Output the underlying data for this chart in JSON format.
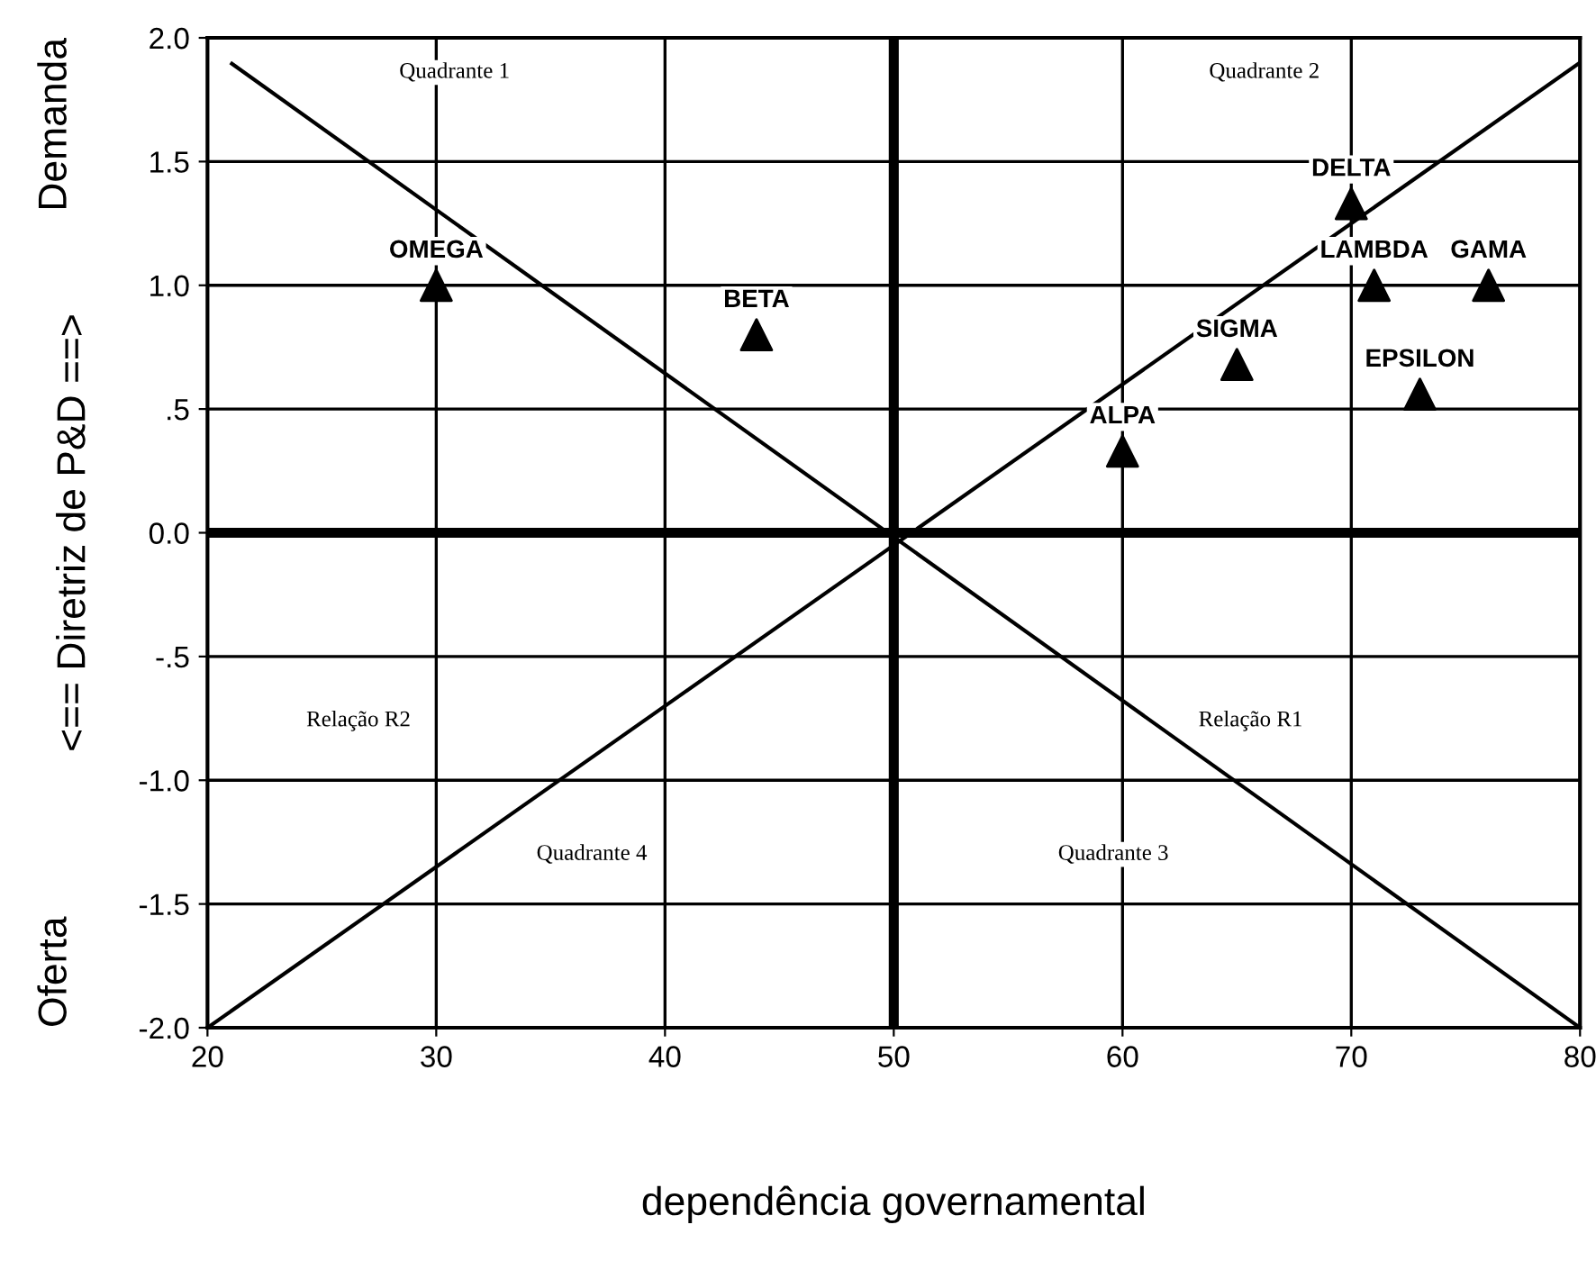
{
  "chart_data": {
    "type": "scatter",
    "xlabel": "dependência governamental",
    "ylabel": "<== Diretriz de P&D ==>",
    "xlim": [
      20,
      80
    ],
    "xticks": [
      20,
      30,
      40,
      50,
      60,
      70,
      80
    ],
    "ylim": [
      -2.0,
      2.0
    ],
    "yticks": [
      {
        "value": 2.0,
        "label": "2.0"
      },
      {
        "value": 1.5,
        "label": "1.5"
      },
      {
        "value": 1.0,
        "label": "1.0"
      },
      {
        "value": 0.5,
        "label": ".5"
      },
      {
        "value": 0.0,
        "label": "0.0"
      },
      {
        "value": -0.5,
        "label": "-.5"
      },
      {
        "value": -1.0,
        "label": "-1.0"
      },
      {
        "value": -1.5,
        "label": "-1.5"
      },
      {
        "value": -2.0,
        "label": "-2.0"
      }
    ],
    "grid": true,
    "marker": "triangle",
    "legend": false,
    "series": [
      {
        "name": "OMEGA",
        "color": "#000000",
        "x": [
          30
        ],
        "values": [
          1.0
        ]
      },
      {
        "name": "BETA",
        "color": "#000000",
        "x": [
          44
        ],
        "values": [
          0.8
        ]
      },
      {
        "name": "DELTA",
        "color": "#000000",
        "x": [
          70
        ],
        "values": [
          1.33
        ]
      },
      {
        "name": "LAMBDA",
        "color": "#000000",
        "x": [
          71
        ],
        "values": [
          1.0
        ]
      },
      {
        "name": "GAMA",
        "color": "#000000",
        "x": [
          76
        ],
        "values": [
          1.0
        ]
      },
      {
        "name": "SIGMA",
        "color": "#000000",
        "x": [
          65
        ],
        "values": [
          0.68
        ]
      },
      {
        "name": "EPSILON",
        "color": "#000000",
        "x": [
          73
        ],
        "values": [
          0.56
        ]
      },
      {
        "name": "ALPA",
        "color": "#000000",
        "x": [
          60
        ],
        "values": [
          0.33
        ]
      },
      {
        "type": "line",
        "marker": "none",
        "color": "#000000",
        "x": [
          20,
          80
        ],
        "values": [
          -2.0,
          1.9
        ]
      },
      {
        "type": "line",
        "marker": "none",
        "color": "#000000",
        "x": [
          21,
          80
        ],
        "values": [
          1.9,
          -2.0
        ]
      },
      {
        "type": "line",
        "marker": "none",
        "color": "#000000",
        "x": [
          50,
          50
        ],
        "values": [
          -2.0,
          2.0
        ]
      },
      {
        "type": "line",
        "marker": "none",
        "color": "#000000",
        "x": [
          20,
          80
        ],
        "values": [
          0,
          0
        ]
      }
    ],
    "annotations": [
      "Oferta",
      "Demanda",
      "Quadrante 1",
      "Quadrante 2",
      "Relação R2",
      "Relação R1",
      "Quadrante 4",
      "Quadrante 3"
    ]
  }
}
